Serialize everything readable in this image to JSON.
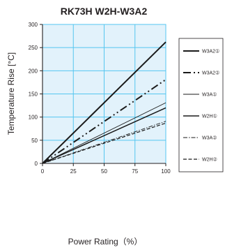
{
  "chart_data": {
    "type": "line",
    "title": "RK73H W2H-W3A2",
    "xlabel": "Power Rating（%）",
    "ylabel": "Temperature Rise [°C]",
    "xlim": [
      0,
      100
    ],
    "ylim": [
      0,
      300
    ],
    "x_ticks": [
      0,
      25,
      50,
      75,
      100
    ],
    "y_ticks": [
      0,
      50,
      100,
      150,
      200,
      250,
      300
    ],
    "grid": true,
    "legend_position": "right",
    "plot_background": "#e2f2fb",
    "grid_color": "#54c6f0",
    "line_color": "#1a1a1a",
    "x": [
      0,
      100
    ],
    "series": [
      {
        "name": "W3A2①",
        "values": [
          0,
          262
        ],
        "style": "solid-thick"
      },
      {
        "name": "W3A2②",
        "values": [
          0,
          181
        ],
        "style": "dash-dot-dot-thick"
      },
      {
        "name": "W3A①",
        "values": [
          0,
          131
        ],
        "style": "solid-thin"
      },
      {
        "name": "W2H①",
        "values": [
          0,
          120
        ],
        "style": "solid-medium"
      },
      {
        "name": "W3A②",
        "values": [
          0,
          91
        ],
        "style": "dash-dot-thin"
      },
      {
        "name": "W2H②",
        "values": [
          0,
          87
        ],
        "style": "dashed"
      }
    ]
  }
}
